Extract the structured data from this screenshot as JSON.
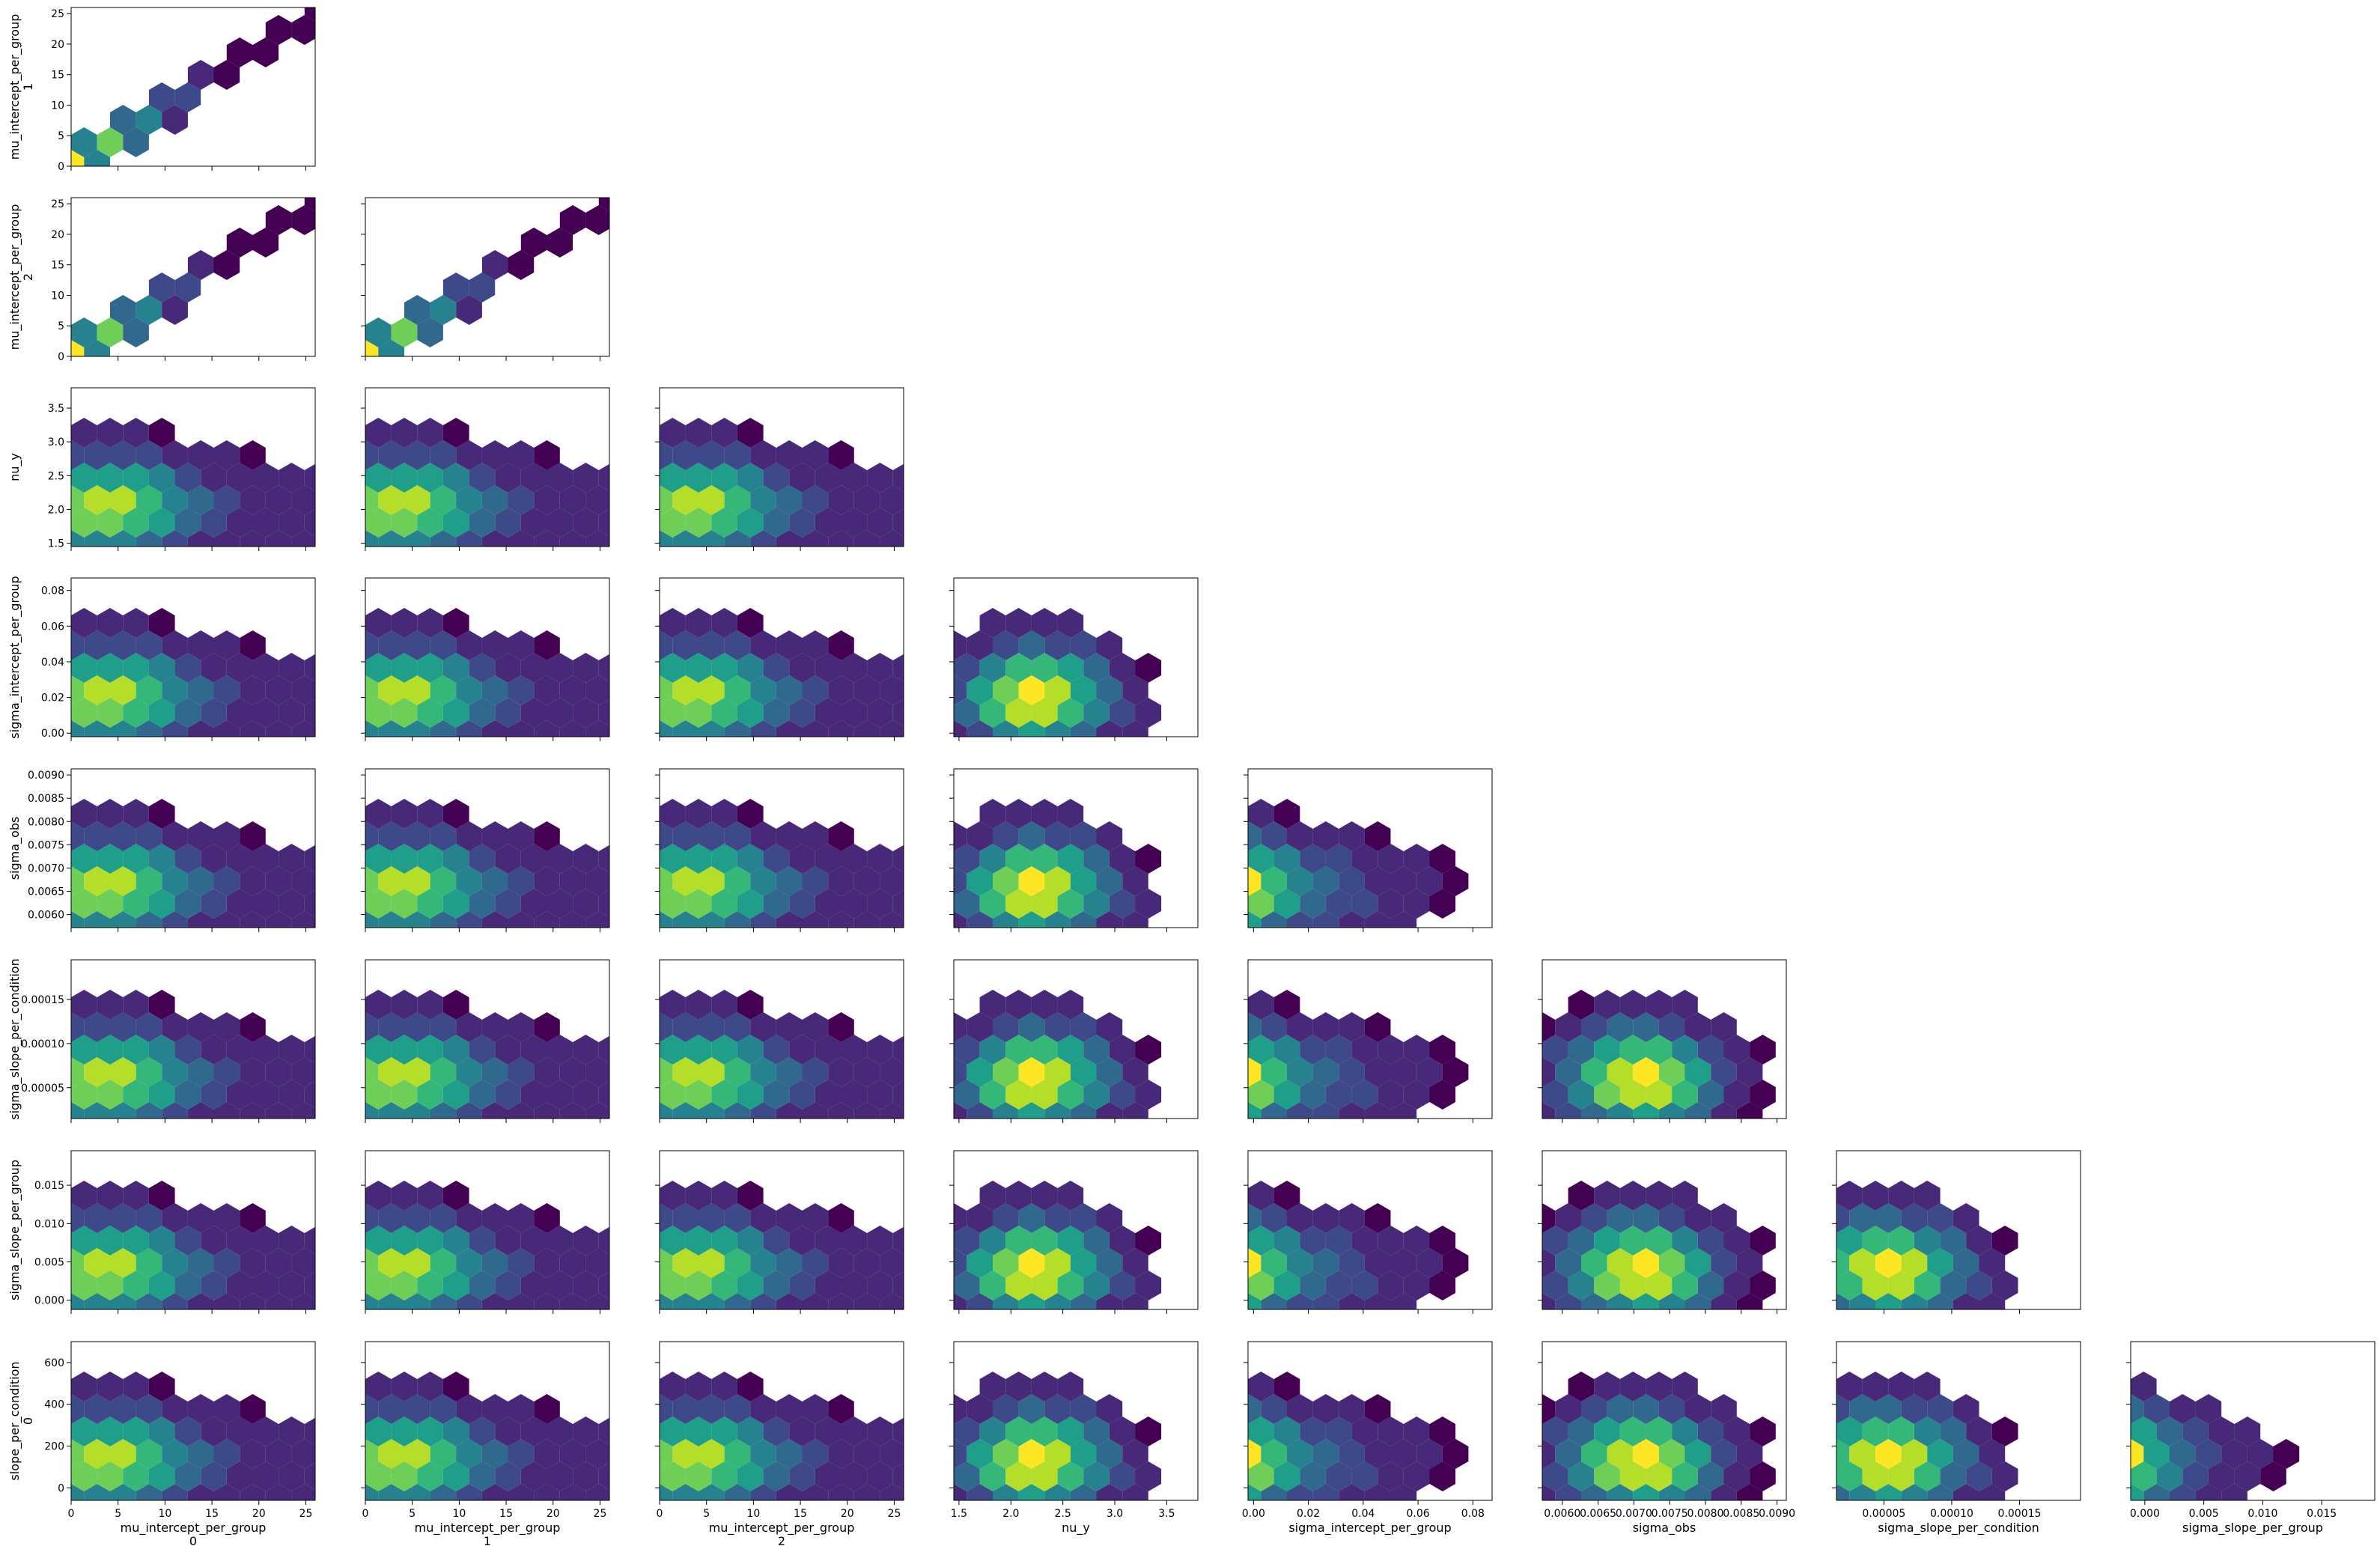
{
  "chart_data": {
    "type": "heatmap",
    "subtype": "hexbin pair plot (lower triangle)",
    "colormap": "viridis",
    "grid": false,
    "variables": [
      {
        "id": "mu0",
        "label": "mu_intercept_per_group",
        "label2": "0",
        "range": [
          0,
          26
        ],
        "ticks": [
          0,
          5,
          10,
          15,
          20,
          25
        ],
        "tick_labels": [
          "0",
          "5",
          "10",
          "15",
          "20",
          "25"
        ]
      },
      {
        "id": "mu1",
        "label": "mu_intercept_per_group",
        "label2": "1",
        "range": [
          0,
          26
        ],
        "ticks": [
          0,
          5,
          10,
          15,
          20,
          25
        ],
        "tick_labels": [
          "0",
          "5",
          "10",
          "15",
          "20",
          "25"
        ]
      },
      {
        "id": "mu2",
        "label": "mu_intercept_per_group",
        "label2": "2",
        "range": [
          0,
          26
        ],
        "ticks": [
          0,
          5,
          10,
          15,
          20,
          25
        ],
        "tick_labels": [
          "0",
          "5",
          "10",
          "15",
          "20",
          "25"
        ]
      },
      {
        "id": "nu",
        "label": "nu_y",
        "label2": "",
        "range": [
          1.45,
          3.8
        ],
        "ticks": [
          1.5,
          2.0,
          2.5,
          3.0,
          3.5
        ],
        "tick_labels": [
          "1.5",
          "2.0",
          "2.5",
          "3.0",
          "3.5"
        ]
      },
      {
        "id": "sig_int",
        "label": "sigma_intercept_per_group",
        "label2": "",
        "range": [
          -0.002,
          0.087
        ],
        "ticks": [
          0.0,
          0.02,
          0.04,
          0.06,
          0.08
        ],
        "tick_labels": [
          "0.00",
          "0.02",
          "0.04",
          "0.06",
          "0.08"
        ]
      },
      {
        "id": "sig_obs",
        "label": "sigma_obs",
        "label2": "",
        "range": [
          0.00572,
          0.00913
        ],
        "ticks": [
          0.006,
          0.0065,
          0.007,
          0.0075,
          0.008,
          0.0085,
          0.009
        ],
        "tick_labels": [
          "0.0060",
          "0.0065",
          "0.0070",
          "0.0075",
          "0.0080",
          "0.0085",
          "0.0090"
        ]
      },
      {
        "id": "sig_slope_cond",
        "label": "sigma_slope_per_condition",
        "label2": "",
        "range": [
          1.5e-05,
          0.000195
        ],
        "ticks": [
          5e-05,
          0.0001,
          0.00015
        ],
        "tick_labels": [
          "0.00005",
          "0.00010",
          "0.00015"
        ]
      },
      {
        "id": "sig_slope_grp",
        "label": "sigma_slope_per_group",
        "label2": "",
        "range": [
          -0.0012,
          0.0195
        ],
        "ticks": [
          0.0,
          0.005,
          0.01,
          0.015
        ],
        "tick_labels": [
          "0.000",
          "0.005",
          "0.010",
          "0.015"
        ]
      },
      {
        "id": "slope",
        "label": "slope_per_condition",
        "label2": "0",
        "range": [
          -60,
          700
        ],
        "ticks": [
          0,
          200,
          400,
          600
        ],
        "tick_labels": [
          "0",
          "200",
          "400",
          "600"
        ]
      }
    ]
  }
}
